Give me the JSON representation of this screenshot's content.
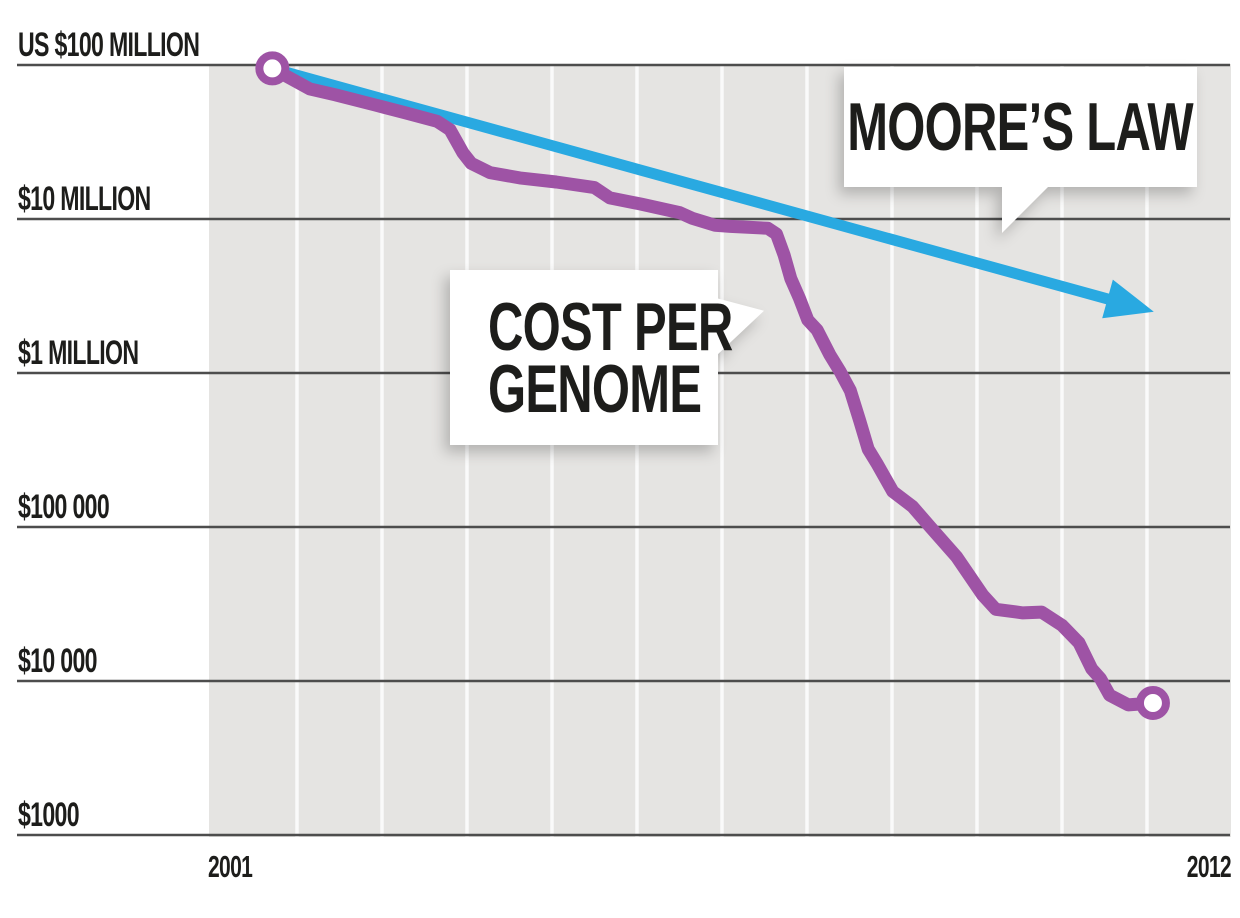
{
  "chart_data": {
    "type": "line",
    "x_axis": {
      "start_label": "2001",
      "end_label": "2012",
      "range": [
        2001,
        2012.2
      ],
      "gridlines": "yearly"
    },
    "y_axis": {
      "scale": "log",
      "unit": "US dollars",
      "ticks": [
        {
          "label": "US $100 MILLION",
          "value": 100000000
        },
        {
          "label": "$10 MILLION",
          "value": 10000000
        },
        {
          "label": "$1 MILLION",
          "value": 1000000
        },
        {
          "label": "$100 000",
          "value": 100000
        },
        {
          "label": "$10 000",
          "value": 10000
        },
        {
          "label": "$1000",
          "value": 1000
        }
      ]
    },
    "series": [
      {
        "name": "MOORE'S LAW",
        "color": "#29a9e1",
        "style": "straight-line-with-arrowhead",
        "points": [
          [
            2001.71,
            95000000
          ],
          [
            2012.08,
            2500000
          ]
        ]
      },
      {
        "name": "COST PER GENOME",
        "color": "#9e53a5",
        "style": "polyline-with-circle-endpoints",
        "points": [
          [
            2001.71,
            95000000
          ],
          [
            2002.15,
            70000000
          ],
          [
            2002.45,
            64000000
          ],
          [
            2002.92,
            55000000
          ],
          [
            2003.27,
            49000000
          ],
          [
            2003.65,
            43000000
          ],
          [
            2003.8,
            38000000
          ],
          [
            2003.95,
            27000000
          ],
          [
            2004.05,
            23000000
          ],
          [
            2004.27,
            20000000
          ],
          [
            2004.62,
            18500000
          ],
          [
            2005.05,
            17400000
          ],
          [
            2005.5,
            16000000
          ],
          [
            2005.68,
            13700000
          ],
          [
            2006.05,
            12500000
          ],
          [
            2006.5,
            11000000
          ],
          [
            2006.65,
            10100000
          ],
          [
            2006.92,
            9100000
          ],
          [
            2007.1,
            8950000
          ],
          [
            2007.54,
            8700000
          ],
          [
            2007.64,
            8000000
          ],
          [
            2007.73,
            5840000
          ],
          [
            2007.81,
            4100000
          ],
          [
            2007.91,
            3060000
          ],
          [
            2008.01,
            2210000
          ],
          [
            2008.12,
            1900000
          ],
          [
            2008.27,
            1310000
          ],
          [
            2008.39,
            1020000
          ],
          [
            2008.51,
            770000
          ],
          [
            2008.62,
            490000
          ],
          [
            2008.72,
            320000
          ],
          [
            2008.82,
            260000
          ],
          [
            2009.01,
            170000
          ],
          [
            2009.24,
            136000
          ],
          [
            2009.45,
            100000
          ],
          [
            2009.76,
            64000
          ],
          [
            2010.07,
            36000
          ],
          [
            2010.22,
            29200
          ],
          [
            2010.54,
            27700
          ],
          [
            2010.76,
            28000
          ],
          [
            2011.0,
            23000
          ],
          [
            2011.2,
            17700
          ],
          [
            2011.35,
            12000
          ],
          [
            2011.45,
            10400
          ],
          [
            2011.56,
            8100
          ],
          [
            2011.78,
            7000
          ],
          [
            2012.07,
            7200
          ]
        ]
      }
    ],
    "annotations": {
      "moore_label": "MOORE’S LAW",
      "cost_label_line1": "COST PER",
      "cost_label_line2": "GENOME"
    },
    "legend_position": "callout-bubbles-inside-plot",
    "grid": "on"
  },
  "colors": {
    "accent_blue": "#29a9e1",
    "accent_purple": "#9e53a5",
    "plot_background": "#e5e4e2",
    "gridline_light": "#fafafa",
    "gridline_dark": "#4d4d4d",
    "text": "#1d1d1b",
    "bubble_background": "#ffffff"
  }
}
